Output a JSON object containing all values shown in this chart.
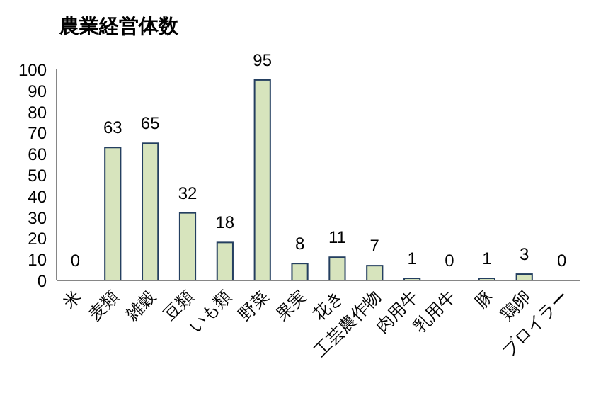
{
  "chart_data": {
    "type": "bar",
    "title": "農業経営体数",
    "categories": [
      "米",
      "麦類",
      "雑穀",
      "豆類",
      "いも類",
      "野菜",
      "果実",
      "花き",
      "工芸農作物",
      "肉用牛",
      "乳用牛",
      "豚",
      "鶏卵",
      "ブロイラー"
    ],
    "values": [
      0,
      63,
      65,
      32,
      18,
      95,
      8,
      11,
      7,
      1,
      0,
      1,
      3,
      0
    ],
    "color": "#d7e4bd",
    "ylim": [
      0,
      100
    ],
    "yticks": [
      0,
      10,
      20,
      30,
      40,
      50,
      60,
      70,
      80,
      90,
      100
    ],
    "data_labels": true,
    "grid": false
  }
}
